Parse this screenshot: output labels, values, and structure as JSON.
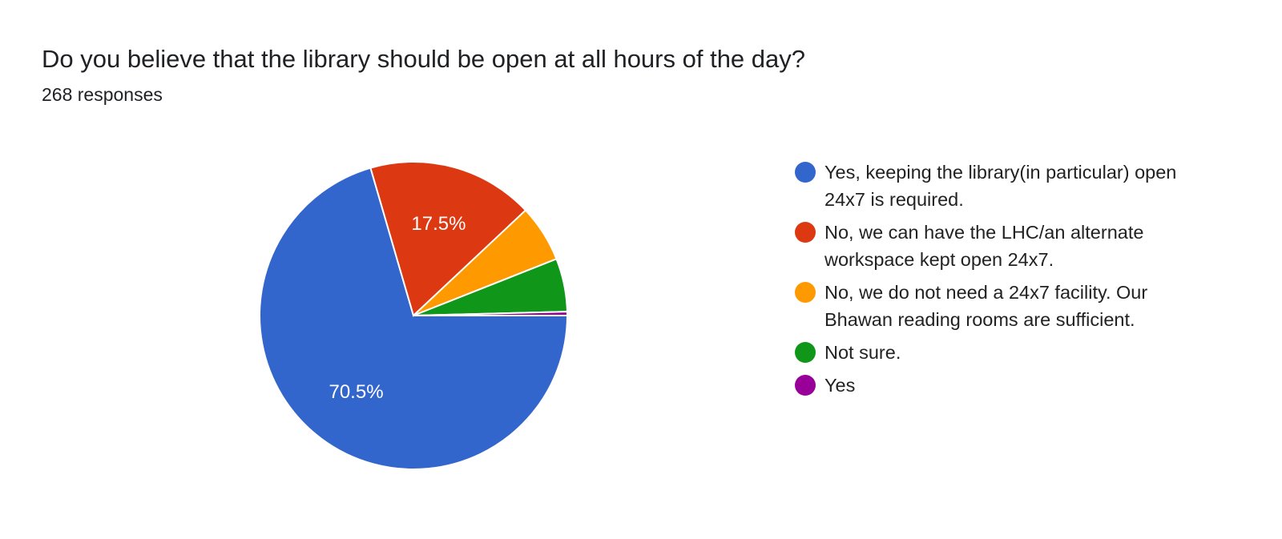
{
  "title": "Do you believe that the library should be open at all hours of the day?",
  "subtitle": "268 responses",
  "chart_data": {
    "type": "pie",
    "title": "Do you believe that the library should be open at all hours of the day?",
    "total_responses": 268,
    "legend_position": "right",
    "slices": [
      {
        "label": "Yes, keeping the library(in particular) open 24x7 is required.",
        "percent": 70.5,
        "data_label": "70.5%",
        "color": "#3366cc"
      },
      {
        "label": "No, we can have the LHC/an alternate workspace kept open 24x7.",
        "percent": 17.5,
        "data_label": "17.5%",
        "color": "#dc3912"
      },
      {
        "label": "No, we do not need a 24x7 facility. Our Bhawan reading rooms are sufficient.",
        "percent": 6.0,
        "data_label": "",
        "color": "#ff9900"
      },
      {
        "label": "Not sure.",
        "percent": 5.6,
        "data_label": "",
        "color": "#109618"
      },
      {
        "label": "Yes",
        "percent": 0.4,
        "data_label": "",
        "color": "#990099"
      }
    ]
  }
}
